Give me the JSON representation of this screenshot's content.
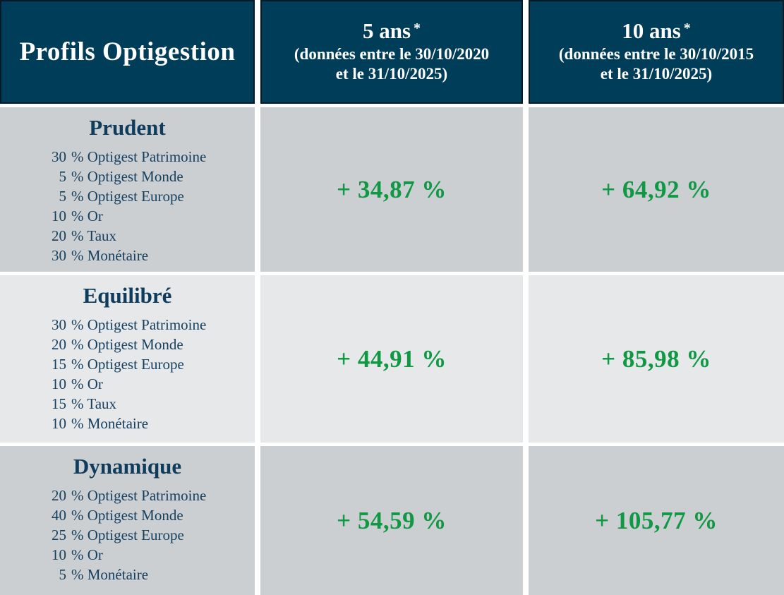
{
  "colors": {
    "header_bg": "#003d59",
    "header_border": "#041a28",
    "row_shade_dark": "#cccfd2",
    "row_shade_light": "#e7e8ea",
    "navy_text": "#16405f",
    "value_green": "#109845"
  },
  "header": {
    "profiles_title": "Profils Optigestion",
    "col_5y": {
      "title": "5 ans",
      "asterisk": "*",
      "subtitle_line1": "(données entre le 30/10/2020",
      "subtitle_line2": "et le 31/10/2025)"
    },
    "col_10y": {
      "title": "10 ans",
      "asterisk": "*",
      "subtitle_line1": "(données entre le 30/10/2015",
      "subtitle_line2": "et le 31/10/2025)"
    }
  },
  "rows": [
    {
      "name": "Prudent",
      "allocations": [
        {
          "pct": "30",
          "label": "Optigest Patrimoine"
        },
        {
          "pct": "5",
          "label": "Optigest Monde"
        },
        {
          "pct": "5",
          "label": "Optigest Europe"
        },
        {
          "pct": "10",
          "label": "Or"
        },
        {
          "pct": "20",
          "label": "Taux"
        },
        {
          "pct": "30",
          "label": "Monétaire"
        }
      ],
      "value_5y": "+ 34,87 %",
      "value_10y": "+ 64,92 %"
    },
    {
      "name": "Equilibré",
      "allocations": [
        {
          "pct": "30",
          "label": "Optigest Patrimoine"
        },
        {
          "pct": "20",
          "label": "Optigest Monde"
        },
        {
          "pct": "15",
          "label": "Optigest Europe"
        },
        {
          "pct": "10",
          "label": "Or"
        },
        {
          "pct": "15",
          "label": "Taux"
        },
        {
          "pct": "10",
          "label": "Monétaire"
        }
      ],
      "value_5y": "+ 44,91 %",
      "value_10y": "+ 85,98 %"
    },
    {
      "name": "Dynamique",
      "allocations": [
        {
          "pct": "20",
          "label": "Optigest Patrimoine"
        },
        {
          "pct": "40",
          "label": "Optigest Monde"
        },
        {
          "pct": "25",
          "label": "Optigest Europe"
        },
        {
          "pct": "10",
          "label": "Or"
        },
        {
          "pct": "5",
          "label": "Monétaire"
        }
      ],
      "value_5y": "+ 54,59 %",
      "value_10y": "+ 105,77 %"
    }
  ],
  "chart_data": {
    "type": "table",
    "title": "Profils Optigestion",
    "columns": [
      "Profils Optigestion",
      "5 ans * (données entre le 30/10/2020 et le 31/10/2025)",
      "10 ans * (données entre le 30/10/2015 et le 31/10/2025)"
    ],
    "series": [
      {
        "name": "Prudent",
        "perf_5y_pct": 34.87,
        "perf_10y_pct": 64.92,
        "allocation_pct": {
          "Optigest Patrimoine": 30,
          "Optigest Monde": 5,
          "Optigest Europe": 5,
          "Or": 10,
          "Taux": 20,
          "Monétaire": 30
        }
      },
      {
        "name": "Equilibré",
        "perf_5y_pct": 44.91,
        "perf_10y_pct": 85.98,
        "allocation_pct": {
          "Optigest Patrimoine": 30,
          "Optigest Monde": 20,
          "Optigest Europe": 15,
          "Or": 10,
          "Taux": 15,
          "Monétaire": 10
        }
      },
      {
        "name": "Dynamique",
        "perf_5y_pct": 54.59,
        "perf_10y_pct": 105.77,
        "allocation_pct": {
          "Optigest Patrimoine": 20,
          "Optigest Monde": 40,
          "Optigest Europe": 25,
          "Or": 10,
          "Monétaire": 5
        }
      }
    ]
  }
}
